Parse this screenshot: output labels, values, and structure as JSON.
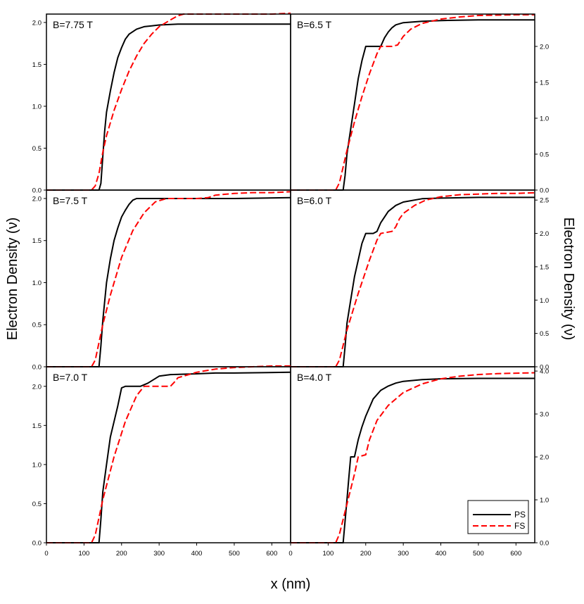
{
  "figure": {
    "y_label_left": "Electron Density (ν)",
    "y_label_right": "Electron Density (ν)",
    "x_label": "x (nm)"
  },
  "legend": {
    "placement": "bottom-right",
    "entries": [
      {
        "label": "PS",
        "color": "#000000",
        "dash": "solid"
      },
      {
        "label": "FS",
        "color": "#ff0000",
        "dash": "dashed"
      }
    ]
  },
  "chart_data": [
    {
      "type": "line",
      "label": "B=7.75 T",
      "axis_side": "left",
      "xlim": [
        0,
        650
      ],
      "ylim": [
        0,
        2.1
      ],
      "yticks": [
        "0.0",
        "0.5",
        "1.0",
        "1.5",
        "2.0"
      ],
      "ytick_values": [
        0,
        0.5,
        1.0,
        1.5,
        2.0
      ],
      "series": [
        {
          "name": "PS",
          "color": "#000000",
          "dash": "solid",
          "x": [
            0,
            140,
            145,
            150,
            155,
            160,
            170,
            180,
            190,
            200,
            210,
            220,
            240,
            260,
            280,
            300,
            350,
            400,
            500,
            650
          ],
          "y": [
            0,
            0,
            0.08,
            0.4,
            0.7,
            0.93,
            1.18,
            1.4,
            1.58,
            1.7,
            1.8,
            1.86,
            1.92,
            1.95,
            1.96,
            1.97,
            1.98,
            1.98,
            1.98,
            1.98
          ]
        },
        {
          "name": "FS",
          "color": "#ff0000",
          "dash": "dashed",
          "x": [
            0,
            120,
            130,
            140,
            150,
            160,
            180,
            200,
            220,
            240,
            260,
            280,
            300,
            330,
            350,
            365,
            400,
            500,
            600,
            650
          ],
          "y": [
            0,
            0,
            0.05,
            0.2,
            0.45,
            0.65,
            0.95,
            1.2,
            1.42,
            1.6,
            1.75,
            1.86,
            1.95,
            2.03,
            2.08,
            2.1,
            2.1,
            2.1,
            2.1,
            2.11
          ]
        }
      ]
    },
    {
      "type": "line",
      "label": "B=6.5 T",
      "axis_side": "right",
      "xlim": [
        0,
        650
      ],
      "ylim": [
        0,
        2.45
      ],
      "yticks": [
        "0.0",
        "0.5",
        "1.0",
        "1.5",
        "2.0"
      ],
      "ytick_values": [
        0,
        0.5,
        1.0,
        1.5,
        2.0
      ],
      "series": [
        {
          "name": "PS",
          "color": "#000000",
          "dash": "solid",
          "x": [
            0,
            140,
            145,
            150,
            160,
            170,
            180,
            190,
            200,
            210,
            240,
            250,
            260,
            270,
            280,
            300,
            350,
            400,
            500,
            650
          ],
          "y": [
            0,
            0,
            0.2,
            0.5,
            0.85,
            1.2,
            1.55,
            1.8,
            2.0,
            2.0,
            2.0,
            2.12,
            2.2,
            2.26,
            2.3,
            2.33,
            2.35,
            2.36,
            2.37,
            2.37
          ]
        },
        {
          "name": "FS",
          "color": "#ff0000",
          "dash": "dashed",
          "x": [
            0,
            120,
            130,
            150,
            170,
            190,
            210,
            230,
            240,
            270,
            285,
            300,
            320,
            350,
            400,
            450,
            500,
            600,
            650
          ],
          "y": [
            0,
            0,
            0.1,
            0.55,
            0.95,
            1.3,
            1.62,
            1.9,
            2.0,
            2.0,
            2.02,
            2.14,
            2.24,
            2.32,
            2.38,
            2.41,
            2.43,
            2.44,
            2.44
          ]
        }
      ]
    },
    {
      "type": "line",
      "label": "B=7.5 T",
      "axis_side": "left",
      "xlim": [
        0,
        650
      ],
      "ylim": [
        0,
        2.1
      ],
      "yticks": [
        "0.0",
        "0.5",
        "1.0",
        "1.5",
        "2.0"
      ],
      "ytick_values": [
        0,
        0.5,
        1.0,
        1.5,
        2.0
      ],
      "series": [
        {
          "name": "PS",
          "color": "#000000",
          "dash": "solid",
          "x": [
            0,
            140,
            145,
            150,
            160,
            170,
            180,
            190,
            200,
            210,
            220,
            230,
            240,
            250,
            300,
            400,
            500,
            650
          ],
          "y": [
            0,
            0,
            0.25,
            0.55,
            1.0,
            1.28,
            1.5,
            1.65,
            1.78,
            1.86,
            1.93,
            1.98,
            2.0,
            2.0,
            2.0,
            2.0,
            2.0,
            2.01
          ]
        },
        {
          "name": "FS",
          "color": "#ff0000",
          "dash": "dashed",
          "x": [
            0,
            120,
            130,
            150,
            170,
            200,
            230,
            260,
            290,
            320,
            340,
            400,
            430,
            450,
            500,
            550,
            600,
            650
          ],
          "y": [
            0,
            0,
            0.08,
            0.5,
            0.85,
            1.3,
            1.62,
            1.83,
            1.96,
            2.0,
            2.0,
            2.0,
            2.01,
            2.04,
            2.06,
            2.07,
            2.07,
            2.08
          ]
        }
      ]
    },
    {
      "type": "line",
      "label": "B=6.0 T",
      "axis_side": "right",
      "xlim": [
        0,
        650
      ],
      "ylim": [
        0,
        2.65
      ],
      "yticks": [
        "0.0",
        "0.5",
        "1.0",
        "1.5",
        "2.0",
        "2.5"
      ],
      "ytick_values": [
        0,
        0.5,
        1.0,
        1.5,
        2.0,
        2.5
      ],
      "series": [
        {
          "name": "PS",
          "color": "#000000",
          "dash": "solid",
          "x": [
            0,
            140,
            145,
            150,
            160,
            170,
            180,
            190,
            200,
            210,
            220,
            230,
            240,
            260,
            280,
            300,
            350,
            400,
            500,
            650
          ],
          "y": [
            0,
            0,
            0.3,
            0.65,
            1.0,
            1.35,
            1.6,
            1.85,
            2.0,
            2.0,
            2.0,
            2.03,
            2.16,
            2.33,
            2.42,
            2.47,
            2.52,
            2.53,
            2.54,
            2.54
          ]
        },
        {
          "name": "FS",
          "color": "#ff0000",
          "dash": "dashed",
          "x": [
            0,
            120,
            130,
            150,
            180,
            210,
            230,
            240,
            270,
            280,
            290,
            300,
            330,
            360,
            400,
            450,
            500,
            550,
            600,
            650
          ],
          "y": [
            0,
            0,
            0.1,
            0.55,
            1.1,
            1.6,
            1.9,
            2.0,
            2.03,
            2.1,
            2.22,
            2.3,
            2.42,
            2.5,
            2.55,
            2.58,
            2.59,
            2.6,
            2.6,
            2.61
          ]
        }
      ]
    },
    {
      "type": "line",
      "label": "B=7.0 T",
      "axis_side": "left",
      "xlim": [
        0,
        650
      ],
      "ylim": [
        0,
        2.25
      ],
      "yticks": [
        "0.0",
        "0.5",
        "1.0",
        "1.5",
        "2.0"
      ],
      "ytick_values": [
        0,
        0.5,
        1.0,
        1.5,
        2.0
      ],
      "series": [
        {
          "name": "PS",
          "color": "#000000",
          "dash": "solid",
          "x": [
            0,
            140,
            145,
            150,
            160,
            170,
            180,
            190,
            200,
            210,
            220,
            230,
            250,
            270,
            290,
            300,
            330,
            400,
            450,
            500,
            650
          ],
          "y": [
            0,
            0,
            0.3,
            0.65,
            1.0,
            1.35,
            1.55,
            1.75,
            1.98,
            2.0,
            2.0,
            2.0,
            2.0,
            2.04,
            2.1,
            2.13,
            2.15,
            2.16,
            2.17,
            2.17,
            2.18
          ]
        },
        {
          "name": "FS",
          "color": "#ff0000",
          "dash": "dashed",
          "x": [
            0,
            120,
            130,
            150,
            180,
            210,
            240,
            260,
            270,
            300,
            330,
            340,
            350,
            400,
            450,
            500,
            550,
            600,
            650
          ],
          "y": [
            0,
            0,
            0.1,
            0.55,
            1.1,
            1.55,
            1.88,
            2.0,
            2.0,
            2.0,
            2.0,
            2.05,
            2.11,
            2.18,
            2.22,
            2.24,
            2.25,
            2.26,
            2.26
          ]
        }
      ]
    },
    {
      "type": "line",
      "label": "B=4.0 T",
      "axis_side": "right",
      "xlim": [
        0,
        650
      ],
      "ylim": [
        0,
        4.1
      ],
      "yticks": [
        "0.0",
        "1.0",
        "2.0",
        "3.0",
        "4.0"
      ],
      "ytick_values": [
        0,
        1.0,
        2.0,
        3.0,
        4.0
      ],
      "series": [
        {
          "name": "PS",
          "color": "#000000",
          "dash": "solid",
          "x": [
            0,
            140,
            145,
            150,
            155,
            160,
            170,
            180,
            190,
            200,
            210,
            220,
            240,
            260,
            280,
            300,
            350,
            400,
            500,
            650
          ],
          "y": [
            0,
            0,
            0.5,
            1.0,
            1.5,
            2.0,
            2.0,
            2.4,
            2.7,
            2.95,
            3.15,
            3.35,
            3.55,
            3.65,
            3.72,
            3.76,
            3.8,
            3.82,
            3.83,
            3.83
          ]
        },
        {
          "name": "FS",
          "color": "#ff0000",
          "dash": "dashed",
          "x": [
            0,
            120,
            130,
            150,
            170,
            180,
            200,
            210,
            230,
            260,
            300,
            350,
            400,
            450,
            500,
            550,
            600,
            650
          ],
          "y": [
            0,
            0,
            0.2,
            0.9,
            1.6,
            2.0,
            2.05,
            2.4,
            2.85,
            3.2,
            3.5,
            3.7,
            3.82,
            3.88,
            3.92,
            3.94,
            3.95,
            3.96
          ]
        }
      ]
    }
  ],
  "xticks": [
    "0",
    "100",
    "200",
    "300",
    "400",
    "500",
    "600"
  ],
  "xtick_values": [
    0,
    100,
    200,
    300,
    400,
    500,
    600
  ]
}
